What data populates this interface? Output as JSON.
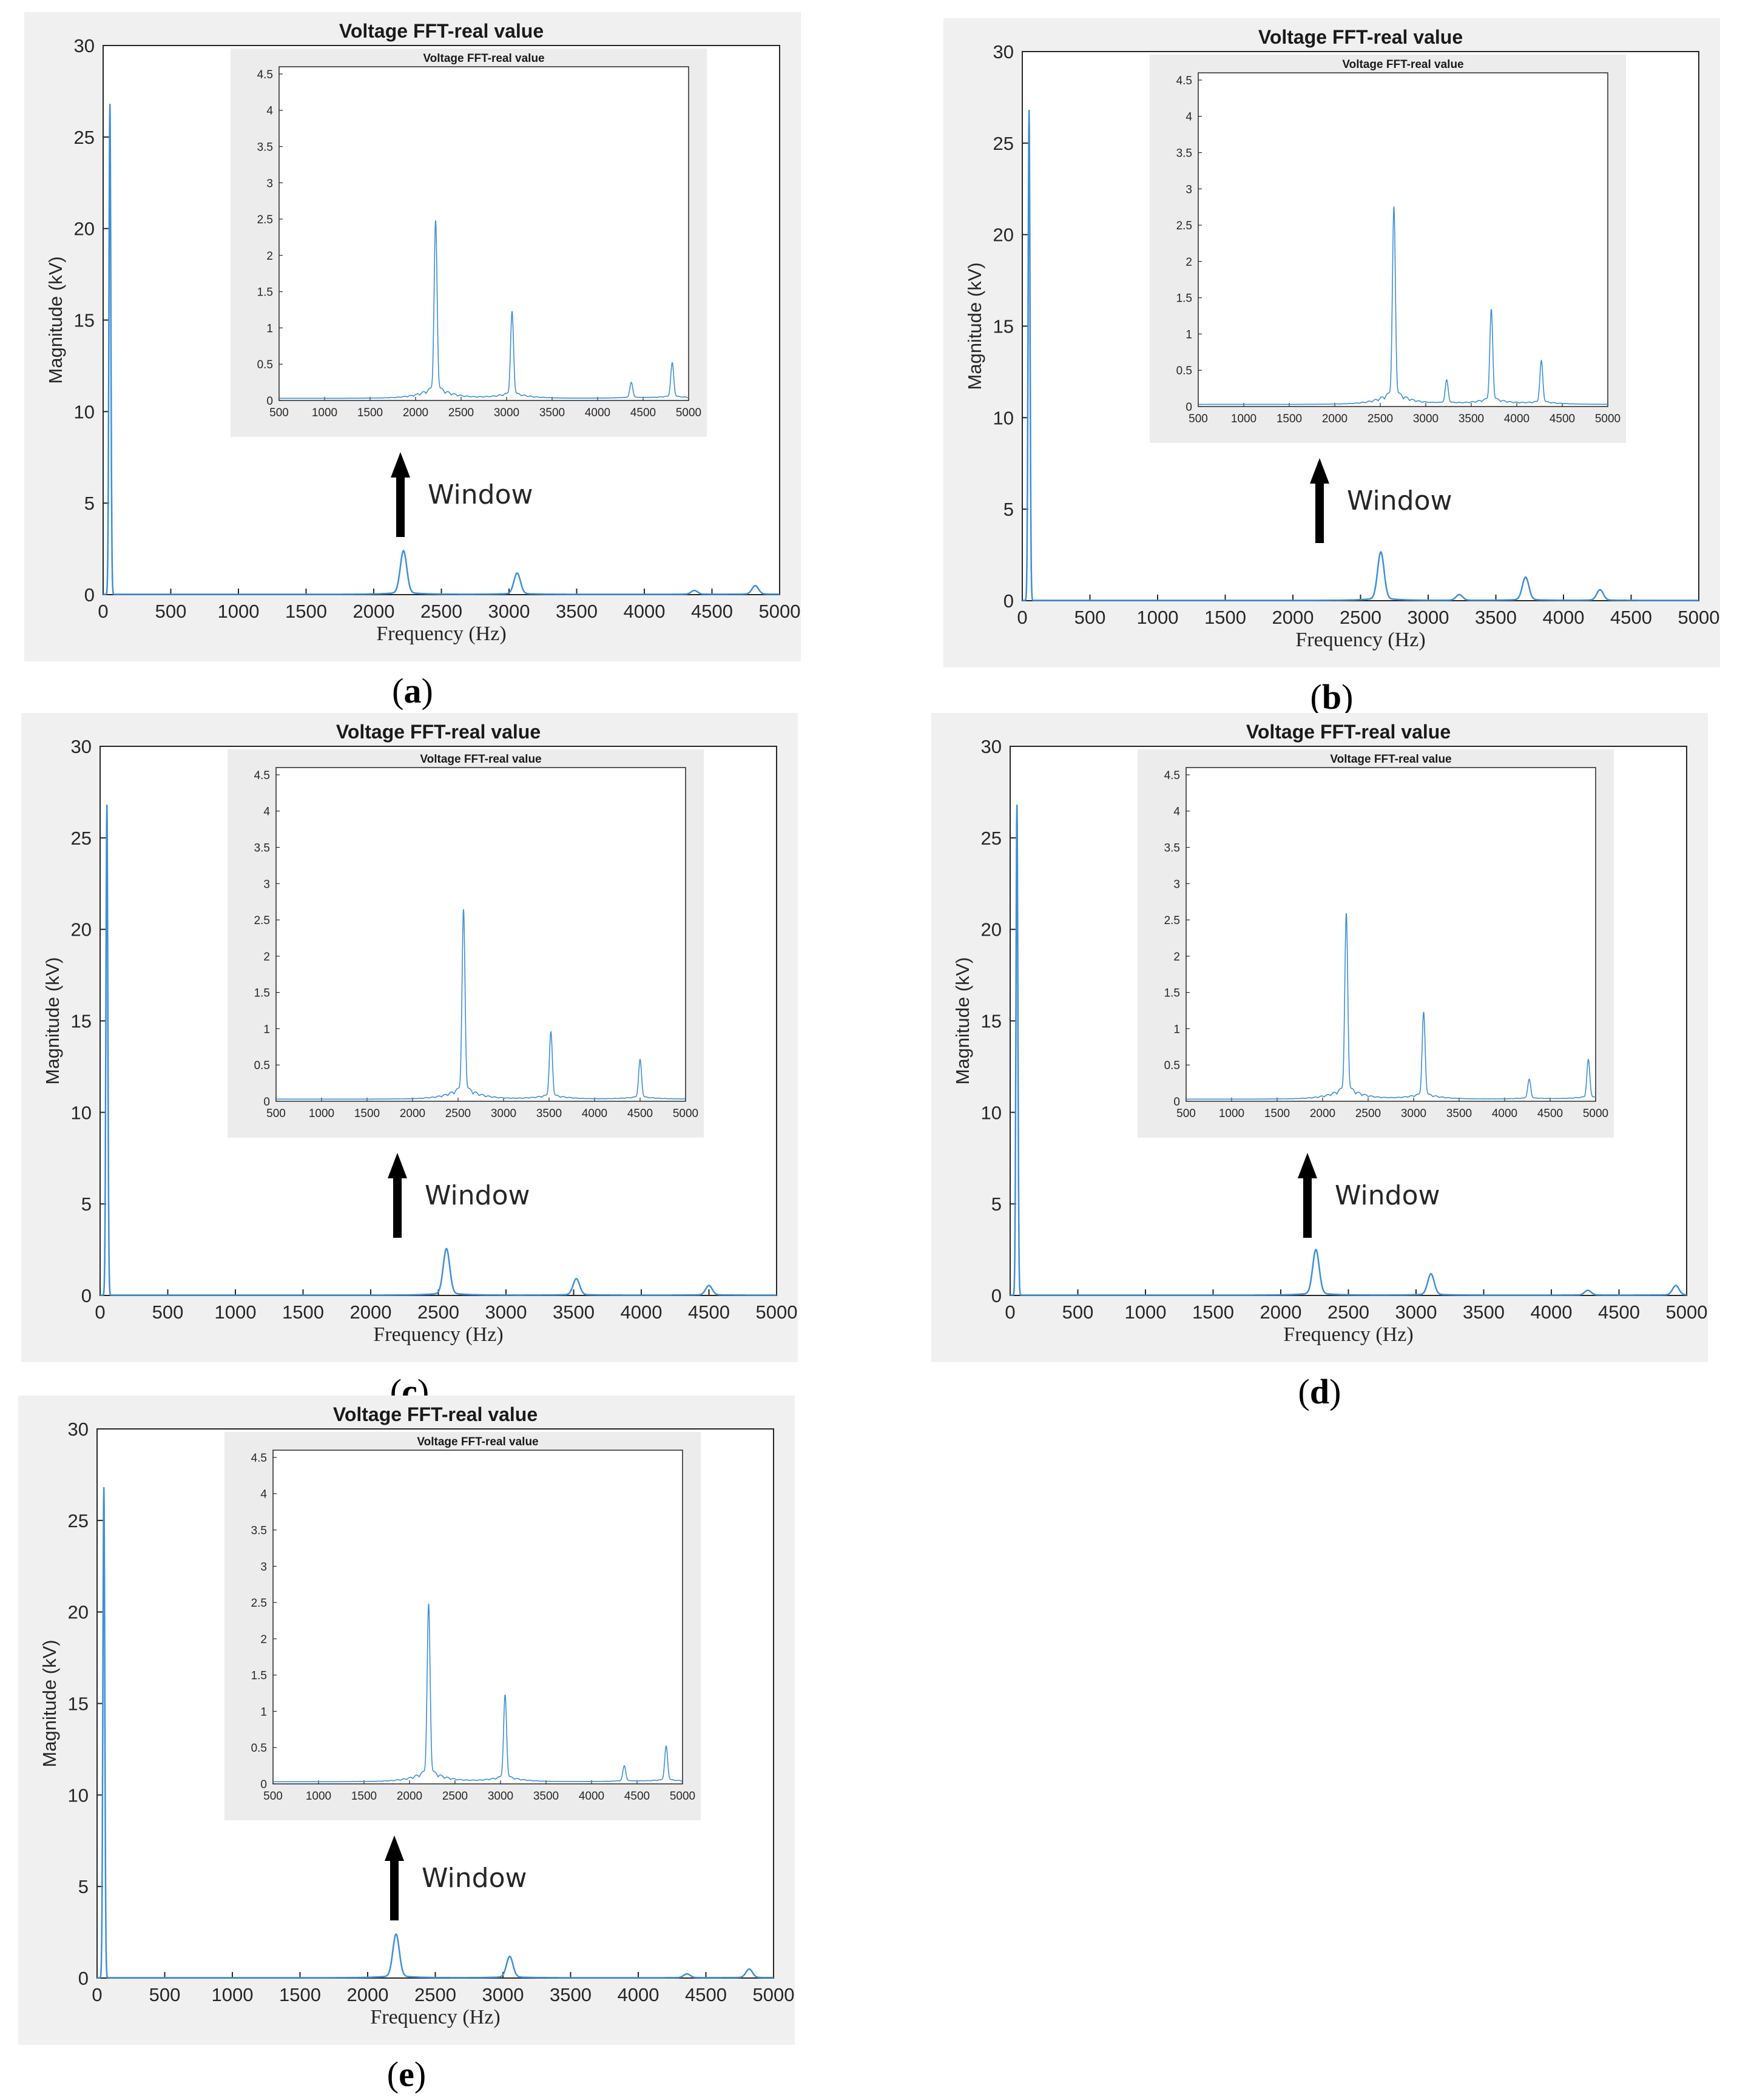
{
  "chart_data": [
    {
      "id": "a",
      "caption_letter": "a",
      "type": "line",
      "title": "Voltage FFT-real value",
      "xlabel": "Frequency (Hz)",
      "ylabel": "Magnitude (kV)",
      "xlim": [
        0,
        5000
      ],
      "ylim": [
        0,
        30
      ],
      "xticks": [
        0,
        500,
        1000,
        1500,
        2000,
        2500,
        3000,
        3500,
        4000,
        4500,
        5000
      ],
      "yticks": [
        0,
        5,
        10,
        15,
        20,
        25,
        30
      ],
      "color": "#3d8fd6",
      "peaks": [
        [
          50,
          26.8
        ],
        [
          2220,
          2.25
        ],
        [
          3060,
          1.1
        ],
        [
          4370,
          0.2
        ],
        [
          4820,
          0.45
        ]
      ],
      "annotation": "Window",
      "inset": {
        "title": "Voltage FFT-real value",
        "xlim": [
          500,
          5000
        ],
        "ylim": [
          0,
          4.6
        ],
        "xticks": [
          500,
          1000,
          1500,
          2000,
          2500,
          3000,
          3500,
          4000,
          4500,
          5000
        ],
        "yticks": [
          0,
          0.5,
          1,
          1.5,
          2,
          2.5,
          3,
          3.5,
          4,
          4.5
        ]
      }
    },
    {
      "id": "b",
      "caption_letter": "b",
      "type": "line",
      "title": "Voltage FFT-real value",
      "xlabel": "Frequency (Hz)",
      "ylabel": "Magnitude (kV)",
      "xlim": [
        0,
        5000
      ],
      "ylim": [
        0,
        30
      ],
      "xticks": [
        0,
        500,
        1000,
        1500,
        2000,
        2500,
        3000,
        3500,
        4000,
        4500,
        5000
      ],
      "yticks": [
        0,
        5,
        10,
        15,
        20,
        25,
        30
      ],
      "color": "#3d8fd6",
      "peaks": [
        [
          50,
          26.8
        ],
        [
          2650,
          2.5
        ],
        [
          3230,
          0.3
        ],
        [
          3720,
          1.2
        ],
        [
          4270,
          0.55
        ]
      ],
      "annotation": "Window",
      "inset": {
        "title": "Voltage FFT-real value",
        "xlim": [
          500,
          5000
        ],
        "ylim": [
          0,
          4.6
        ],
        "xticks": [
          500,
          1000,
          1500,
          2000,
          2500,
          3000,
          3500,
          4000,
          4500,
          5000
        ],
        "yticks": [
          0,
          0.5,
          1,
          1.5,
          2,
          2.5,
          3,
          3.5,
          4,
          4.5
        ]
      }
    },
    {
      "id": "c",
      "caption_letter": "c",
      "type": "line",
      "title": "Voltage FFT-real value",
      "xlabel": "Frequency (Hz)",
      "ylabel": "Magnitude (kV)",
      "xlim": [
        0,
        5000
      ],
      "ylim": [
        0,
        30
      ],
      "xticks": [
        0,
        500,
        1000,
        1500,
        2000,
        2500,
        3000,
        3500,
        4000,
        4500,
        5000
      ],
      "yticks": [
        0,
        5,
        10,
        15,
        20,
        25,
        30
      ],
      "color": "#3d8fd6",
      "peaks": [
        [
          50,
          26.8
        ],
        [
          2560,
          2.4
        ],
        [
          3520,
          0.85
        ],
        [
          4500,
          0.5
        ]
      ],
      "annotation": "Window",
      "inset": {
        "title": "Voltage FFT-real value",
        "xlim": [
          500,
          5000
        ],
        "ylim": [
          0,
          4.6
        ],
        "xticks": [
          500,
          1000,
          1500,
          2000,
          2500,
          3000,
          3500,
          4000,
          4500,
          5000
        ],
        "yticks": [
          0,
          0.5,
          1,
          1.5,
          2,
          2.5,
          3,
          3.5,
          4,
          4.5
        ]
      }
    },
    {
      "id": "d",
      "caption_letter": "d",
      "type": "line",
      "title": "Voltage FFT-real value",
      "xlabel": "Frequency (Hz)",
      "ylabel": "Magnitude (kV)",
      "xlim": [
        0,
        5000
      ],
      "ylim": [
        0,
        30
      ],
      "xticks": [
        0,
        500,
        1000,
        1500,
        2000,
        2500,
        3000,
        3500,
        4000,
        4500,
        5000
      ],
      "yticks": [
        0,
        5,
        10,
        15,
        20,
        25,
        30
      ],
      "color": "#3d8fd6",
      "peaks": [
        [
          50,
          26.8
        ],
        [
          2260,
          2.35
        ],
        [
          3110,
          1.1
        ],
        [
          4270,
          0.25
        ],
        [
          4920,
          0.5
        ]
      ],
      "annotation": "Window",
      "inset": {
        "title": "Voltage FFT-real value",
        "xlim": [
          500,
          5000
        ],
        "ylim": [
          0,
          4.6
        ],
        "xticks": [
          500,
          1000,
          1500,
          2000,
          2500,
          3000,
          3500,
          4000,
          4500,
          5000
        ],
        "yticks": [
          0,
          0.5,
          1,
          1.5,
          2,
          2.5,
          3,
          3.5,
          4,
          4.5
        ]
      }
    },
    {
      "id": "e",
      "caption_letter": "e",
      "type": "line",
      "title": "Voltage FFT-real value",
      "xlabel": "Frequency (Hz)",
      "ylabel": "Magnitude (kV)",
      "xlim": [
        0,
        5000
      ],
      "ylim": [
        0,
        30
      ],
      "xticks": [
        0,
        500,
        1000,
        1500,
        2000,
        2500,
        3000,
        3500,
        4000,
        4500,
        5000
      ],
      "yticks": [
        0,
        5,
        10,
        15,
        20,
        25,
        30
      ],
      "color": "#3d8fd6",
      "peaks": [
        [
          50,
          26.8
        ],
        [
          2210,
          2.25
        ],
        [
          3050,
          1.1
        ],
        [
          4360,
          0.2
        ],
        [
          4820,
          0.45
        ]
      ],
      "annotation": "Window",
      "inset": {
        "title": "Voltage FFT-real value",
        "xlim": [
          500,
          5000
        ],
        "ylim": [
          0,
          4.6
        ],
        "xticks": [
          500,
          1000,
          1500,
          2000,
          2500,
          3000,
          3500,
          4000,
          4500,
          5000
        ],
        "yticks": [
          0,
          0.5,
          1,
          1.5,
          2,
          2.5,
          3,
          3.5,
          4,
          4.5
        ]
      }
    }
  ]
}
